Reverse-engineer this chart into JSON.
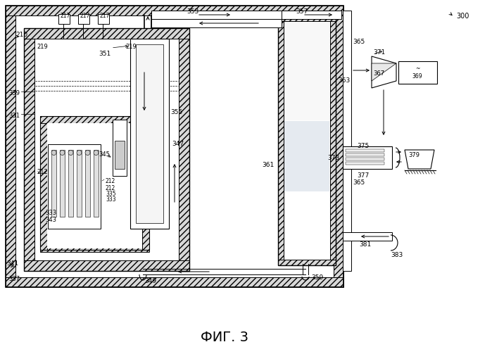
{
  "title": "ФИГ. 3",
  "bg_color": "#ffffff",
  "fig_w": 6.99,
  "fig_h": 4.86,
  "dpi": 100
}
